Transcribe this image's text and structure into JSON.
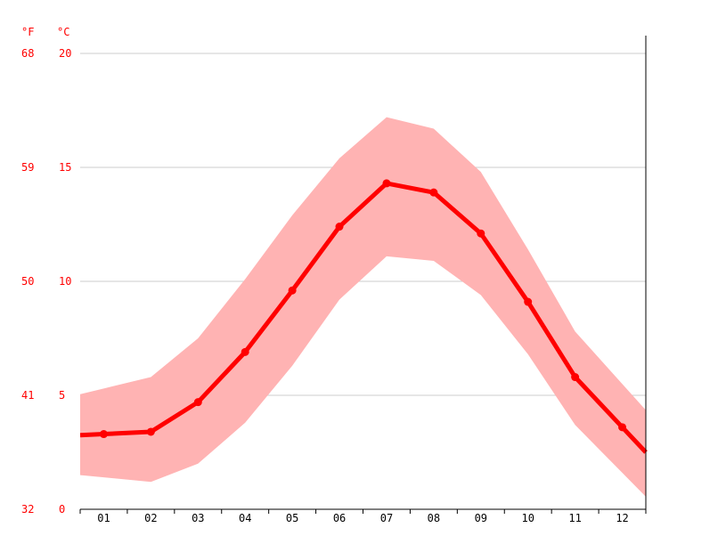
{
  "chart_data": {
    "type": "line",
    "units": {
      "fahrenheit": "°F",
      "celsius": "°C"
    },
    "categories": [
      "01",
      "02",
      "03",
      "04",
      "05",
      "06",
      "07",
      "08",
      "09",
      "10",
      "11",
      "12"
    ],
    "series": [
      {
        "values": [
          3.3,
          3.4,
          4.7,
          6.9,
          9.6,
          12.4,
          14.3,
          13.9,
          12.1,
          9.1,
          5.8,
          3.6
        ]
      }
    ],
    "band": {
      "upper": [
        5.3,
        5.8,
        7.5,
        10.1,
        12.9,
        15.4,
        17.2,
        16.7,
        14.8,
        11.4,
        7.8,
        5.5
      ],
      "lower": [
        1.4,
        1.2,
        2.0,
        3.8,
        6.3,
        9.2,
        11.1,
        10.9,
        9.4,
        6.8,
        3.7,
        1.6
      ]
    },
    "y_celsius_ticks": [
      "0",
      "5",
      "10",
      "15",
      "20"
    ],
    "y_fahrenheit_ticks": [
      "32",
      "41",
      "50",
      "59",
      "68"
    ],
    "ylim": [
      0,
      20
    ],
    "grid": true,
    "colors": {
      "line": "#ff0000",
      "band": "#ffb3b3",
      "grid": "#cccccc",
      "axis_labels": "#ff0000"
    }
  }
}
